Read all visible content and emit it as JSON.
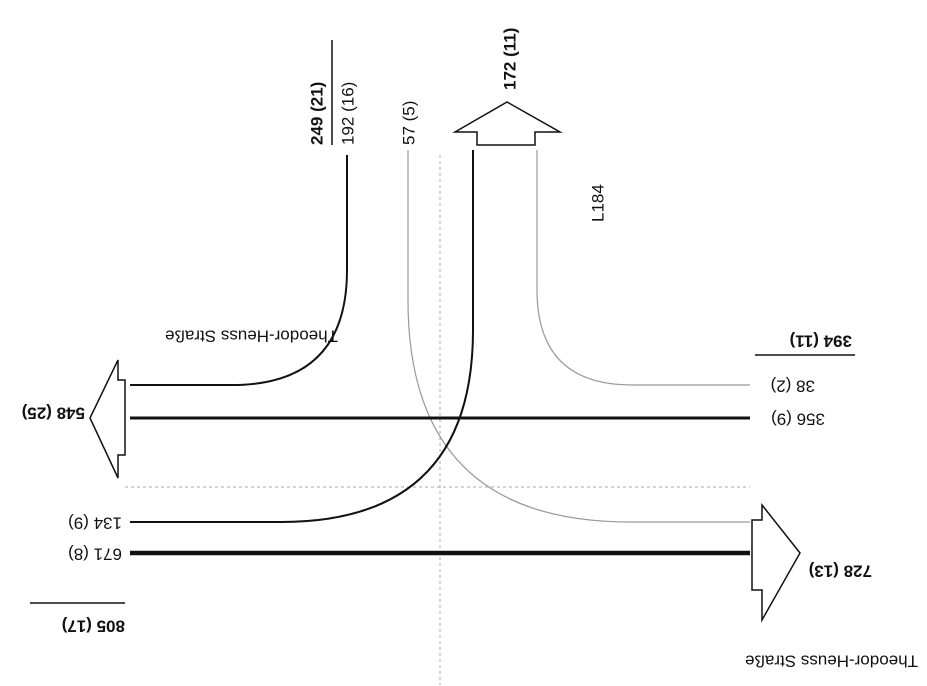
{
  "north": {
    "total": "249 (21)",
    "through": "192 (16)",
    "right_turn": "57 (5)",
    "outbound": "172 (11)",
    "road": "L184"
  },
  "east": {
    "total": "394 (11)",
    "right_turn": "38 (2)",
    "through": "356 (9)",
    "outbound": "728 (13)",
    "road": "Theodor-Heuss Straße"
  },
  "west": {
    "outbound": "548 (25)",
    "left_turn": "134 (9)",
    "through": "671 (8)",
    "total": "805 (17)",
    "road": "Theodor-Heuss Straße"
  }
}
